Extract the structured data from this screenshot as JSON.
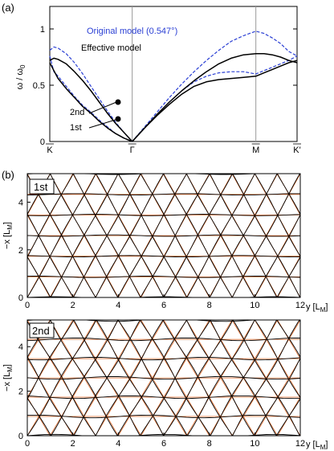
{
  "figure": {
    "panel_a_label": "(a)",
    "panel_b_label": "(b)"
  },
  "chart_data": [
    {
      "type": "line",
      "ylabel": "ω / ω0",
      "ylabel_main": "ω / ω",
      "ylabel_sub": "0",
      "ylim": [
        0,
        1.2
      ],
      "yticks": [
        "0",
        "0.5",
        "1"
      ],
      "yticks_values": [
        0,
        0.5,
        1
      ],
      "xticks": [
        "K",
        "Γ",
        "M",
        "K'"
      ],
      "xticks_values": [
        0,
        1,
        2.5,
        3
      ],
      "legend": {
        "original": "Original model (0.547°)",
        "effective": "Effective model"
      },
      "annotations": {
        "band2": "2nd",
        "band1": "1st"
      },
      "markers": [
        {
          "x": 0.1,
          "y": 0.35
        },
        {
          "x": 0.19,
          "y": 0.27
        }
      ],
      "colors": {
        "original": "#2a3fd4",
        "effective": "#000000"
      },
      "series": [
        {
          "name": "Original model (0.547°)",
          "style": "dashed",
          "x": [
            0,
            0.05,
            0.1,
            0.2,
            0.3,
            0.4,
            0.5,
            0.6,
            0.7,
            0.8,
            0.9,
            1.0
          ],
          "values": [
            0.76,
            0.62,
            0.58,
            0.49,
            0.4,
            0.32,
            0.26,
            0.19,
            0.13,
            0.07,
            0.03,
            0
          ]
        },
        {
          "name": "Original model (0.547°)",
          "style": "dashed",
          "x": [
            0,
            0.05,
            0.1,
            0.2,
            0.3,
            0.4,
            0.5,
            0.6,
            0.7,
            0.8,
            0.9,
            1.0
          ],
          "values": [
            0.81,
            0.84,
            0.83,
            0.78,
            0.7,
            0.6,
            0.49,
            0.38,
            0.27,
            0.17,
            0.08,
            0
          ]
        },
        {
          "name": "Effective model",
          "style": "solid",
          "x": [
            0,
            0.05,
            0.1,
            0.2,
            0.3,
            0.4,
            0.5,
            0.6,
            0.7,
            0.8,
            0.9,
            1.0
          ],
          "values": [
            0.7,
            0.63,
            0.56,
            0.47,
            0.39,
            0.31,
            0.25,
            0.18,
            0.12,
            0.07,
            0.03,
            0
          ]
        },
        {
          "name": "Effective model",
          "style": "solid",
          "x": [
            0,
            0.05,
            0.1,
            0.2,
            0.3,
            0.4,
            0.5,
            0.6,
            0.7,
            0.8,
            0.9,
            1.0
          ],
          "values": [
            0.72,
            0.74,
            0.73,
            0.69,
            0.62,
            0.54,
            0.45,
            0.35,
            0.25,
            0.16,
            0.08,
            0
          ]
        },
        {
          "name": "Original model (0.547°)",
          "style": "dashed",
          "x": [
            1.0,
            1.15,
            1.3,
            1.45,
            1.6,
            1.75,
            1.9,
            2.05,
            2.2,
            2.35,
            2.5,
            2.6,
            2.7,
            2.8,
            2.9,
            3.0
          ],
          "values": [
            0,
            0.13,
            0.26,
            0.39,
            0.51,
            0.62,
            0.72,
            0.81,
            0.89,
            0.94,
            0.98,
            0.96,
            0.92,
            0.87,
            0.8,
            0.76
          ]
        },
        {
          "name": "Original model (0.547°)",
          "style": "dashed",
          "x": [
            1.0,
            1.15,
            1.3,
            1.45,
            1.6,
            1.75,
            1.9,
            2.05,
            2.2,
            2.35,
            2.5,
            2.6,
            2.7,
            2.8,
            2.9,
            3.0
          ],
          "values": [
            0,
            0.12,
            0.24,
            0.35,
            0.45,
            0.53,
            0.58,
            0.61,
            0.62,
            0.62,
            0.6,
            0.63,
            0.66,
            0.69,
            0.72,
            0.76
          ]
        },
        {
          "name": "Effective model",
          "style": "solid",
          "x": [
            1.0,
            1.15,
            1.3,
            1.45,
            1.6,
            1.75,
            1.9,
            2.05,
            2.2,
            2.35,
            2.5,
            2.6,
            2.7,
            2.8,
            2.9,
            3.0
          ],
          "values": [
            0,
            0.12,
            0.24,
            0.35,
            0.45,
            0.54,
            0.62,
            0.69,
            0.74,
            0.77,
            0.78,
            0.78,
            0.77,
            0.75,
            0.72,
            0.7
          ]
        },
        {
          "name": "Effective model",
          "style": "solid",
          "x": [
            1.0,
            1.15,
            1.3,
            1.45,
            1.6,
            1.75,
            1.9,
            2.05,
            2.2,
            2.35,
            2.5,
            2.6,
            2.7,
            2.8,
            2.9,
            3.0
          ],
          "values": [
            0,
            0.12,
            0.23,
            0.33,
            0.42,
            0.49,
            0.53,
            0.55,
            0.56,
            0.57,
            0.58,
            0.61,
            0.64,
            0.67,
            0.7,
            0.72
          ]
        }
      ]
    },
    {
      "type": "lattice",
      "label": "1st",
      "xlabel_main": "y [L",
      "xlabel_sub": "M",
      "xlabel_end": "]",
      "ylabel_main": "−x [L",
      "ylabel_sub": "M",
      "ylabel_end": "]",
      "xlim": [
        0,
        12
      ],
      "ylim": [
        0,
        5.2
      ],
      "xticks": [
        "0",
        "2",
        "4",
        "6",
        "8",
        "10",
        "12"
      ],
      "yticks": [
        "0",
        "2",
        "4"
      ],
      "colors": {
        "displaced": "#000000",
        "original": "#e06a2a"
      },
      "distortion": 0.06
    },
    {
      "type": "lattice",
      "label": "2nd",
      "xlabel_main": "y [L",
      "xlabel_sub": "M",
      "xlabel_end": "]",
      "ylabel_main": "−x [L",
      "ylabel_sub": "M",
      "ylabel_end": "]",
      "xlim": [
        0,
        12
      ],
      "ylim": [
        0,
        5.2
      ],
      "xticks": [
        "0",
        "2",
        "4",
        "6",
        "8",
        "10",
        "12"
      ],
      "yticks": [
        "0",
        "2",
        "4"
      ],
      "colors": {
        "displaced": "#000000",
        "original": "#e06a2a"
      },
      "distortion": 0.12
    }
  ]
}
